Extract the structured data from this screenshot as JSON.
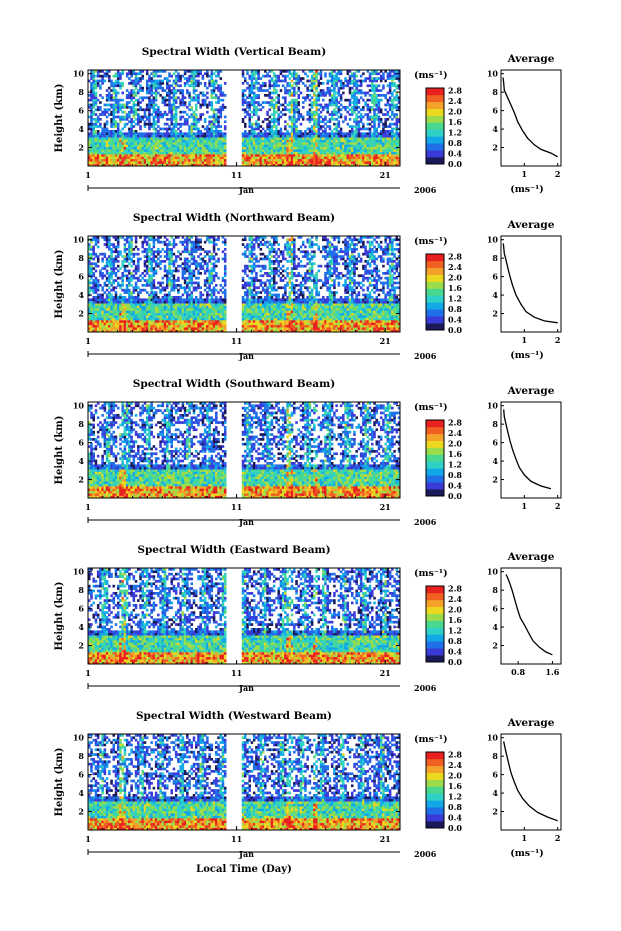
{
  "chart_data": [
    {
      "type": "heatmap",
      "title": "Spectral Width (Vertical Beam)",
      "ylabel": "Height (km)",
      "yticks": [
        "2",
        "4",
        "6",
        "8",
        "10"
      ],
      "xticks": [
        "1",
        "11",
        "21"
      ],
      "month": "Jan",
      "year": "2006",
      "colorbar_unit": "(ms⁻¹)",
      "colorbar_ticks": [
        "0.0",
        "0.4",
        "0.8",
        "1.2",
        "1.6",
        "2.0",
        "2.4",
        "2.8"
      ],
      "average": {
        "title": "Average",
        "xticks": [
          "1",
          "2"
        ],
        "xlim": [
          0.3,
          2.1
        ],
        "xlabel": "(ms⁻¹)",
        "profile": [
          [
            2.0,
            1.0
          ],
          [
            1.8,
            1.4
          ],
          [
            1.5,
            1.8
          ],
          [
            1.3,
            2.3
          ],
          [
            1.1,
            3.0
          ],
          [
            0.95,
            3.8
          ],
          [
            0.8,
            4.8
          ],
          [
            0.7,
            5.8
          ],
          [
            0.6,
            6.6
          ],
          [
            0.5,
            7.4
          ],
          [
            0.4,
            8.2
          ],
          [
            0.38,
            9.0
          ],
          [
            0.36,
            9.6
          ]
        ]
      }
    },
    {
      "type": "heatmap",
      "title": "Spectral Width (Northward Beam)",
      "ylabel": "Height (km)",
      "yticks": [
        "2",
        "4",
        "6",
        "8",
        "10"
      ],
      "xticks": [
        "1",
        "11",
        "21"
      ],
      "month": "Jan",
      "year": "2006",
      "colorbar_unit": "(ms⁻¹)",
      "colorbar_ticks": [
        "0.0",
        "0.4",
        "0.8",
        "1.2",
        "1.6",
        "2.0",
        "2.4",
        "2.8"
      ],
      "average": {
        "title": "Average",
        "xticks": [
          "1",
          "2"
        ],
        "xlim": [
          0.3,
          2.1
        ],
        "xlabel": "(ms⁻¹)",
        "profile": [
          [
            2.0,
            1.0
          ],
          [
            1.6,
            1.2
          ],
          [
            1.3,
            1.6
          ],
          [
            1.05,
            2.2
          ],
          [
            0.9,
            3.0
          ],
          [
            0.75,
            4.0
          ],
          [
            0.65,
            5.0
          ],
          [
            0.57,
            6.0
          ],
          [
            0.5,
            7.0
          ],
          [
            0.45,
            7.8
          ],
          [
            0.4,
            8.5
          ],
          [
            0.38,
            9.2
          ],
          [
            0.37,
            9.6
          ]
        ]
      }
    },
    {
      "type": "heatmap",
      "title": "Spectral Width (Southward Beam)",
      "ylabel": "Height (km)",
      "yticks": [
        "2",
        "4",
        "6",
        "8",
        "10"
      ],
      "xticks": [
        "1",
        "11",
        "21"
      ],
      "month": "Jan",
      "year": "2006",
      "colorbar_unit": "(ms⁻¹)",
      "colorbar_ticks": [
        "0.0",
        "0.4",
        "0.8",
        "1.2",
        "1.6",
        "2.0",
        "2.4",
        "2.8"
      ],
      "average": {
        "title": "Average",
        "xticks": [
          "1",
          "2"
        ],
        "xlim": [
          0.3,
          2.1
        ],
        "xlabel": "",
        "profile": [
          [
            1.8,
            1.0
          ],
          [
            1.5,
            1.3
          ],
          [
            1.2,
            1.8
          ],
          [
            1.0,
            2.5
          ],
          [
            0.85,
            3.3
          ],
          [
            0.75,
            4.2
          ],
          [
            0.65,
            5.2
          ],
          [
            0.57,
            6.2
          ],
          [
            0.5,
            7.2
          ],
          [
            0.45,
            8.0
          ],
          [
            0.4,
            8.8
          ],
          [
            0.38,
            9.6
          ]
        ]
      }
    },
    {
      "type": "heatmap",
      "title": "Spectral Width (Eastward Beam)",
      "ylabel": "Height (km)",
      "yticks": [
        "2",
        "4",
        "6",
        "8",
        "10"
      ],
      "xticks": [
        "1",
        "11",
        "21"
      ],
      "month": "Jan",
      "year": "2006",
      "colorbar_unit": "(ms⁻¹)",
      "colorbar_ticks": [
        "0.0",
        "0.4",
        "0.8",
        "1.2",
        "1.6",
        "2.0",
        "2.4",
        "2.8"
      ],
      "average": {
        "title": "Average",
        "xticks": [
          "0.8",
          "1.6"
        ],
        "xlim": [
          0.4,
          1.8
        ],
        "xlabel": "",
        "profile": [
          [
            1.6,
            1.0
          ],
          [
            1.45,
            1.3
          ],
          [
            1.3,
            1.8
          ],
          [
            1.15,
            2.5
          ],
          [
            1.05,
            3.3
          ],
          [
            0.95,
            4.2
          ],
          [
            0.85,
            5.0
          ],
          [
            0.78,
            6.0
          ],
          [
            0.72,
            7.0
          ],
          [
            0.66,
            8.0
          ],
          [
            0.6,
            8.8
          ],
          [
            0.55,
            9.4
          ],
          [
            0.52,
            9.7
          ]
        ]
      }
    },
    {
      "type": "heatmap",
      "title": "Spectral Width (Westward Beam)",
      "ylabel": "Height (km)",
      "yticks": [
        "2",
        "4",
        "6",
        "8",
        "10"
      ],
      "xticks": [
        "1",
        "11",
        "21"
      ],
      "month": "Jan",
      "year": "2006",
      "colorbar_unit": "(ms⁻¹)",
      "colorbar_ticks": [
        "0.0",
        "0.4",
        "0.8",
        "1.2",
        "1.6",
        "2.0",
        "2.4",
        "2.8"
      ],
      "xlabel": "Local Time (Day)",
      "average": {
        "title": "Average",
        "xticks": [
          "1",
          "2"
        ],
        "xlim": [
          0.3,
          2.1
        ],
        "xlabel": "(ms⁻¹)",
        "profile": [
          [
            2.0,
            1.0
          ],
          [
            1.7,
            1.4
          ],
          [
            1.4,
            1.9
          ],
          [
            1.15,
            2.6
          ],
          [
            0.95,
            3.4
          ],
          [
            0.8,
            4.3
          ],
          [
            0.7,
            5.2
          ],
          [
            0.6,
            6.2
          ],
          [
            0.53,
            7.2
          ],
          [
            0.47,
            8.1
          ],
          [
            0.42,
            8.9
          ],
          [
            0.38,
            9.6
          ]
        ]
      }
    }
  ],
  "colors": {
    "colormap": [
      "#1a1a5a",
      "#3a3ad8",
      "#1f6fe8",
      "#12a8e8",
      "#2fd0c8",
      "#49d890",
      "#9bdc4a",
      "#ecd81e",
      "#f4a22a",
      "#f06020",
      "#e82020"
    ]
  }
}
